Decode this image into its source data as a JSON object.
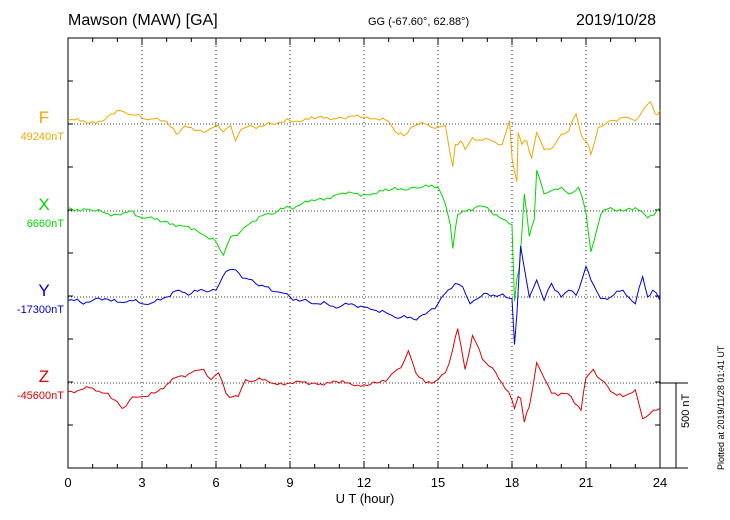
{
  "header": {
    "station": "Mawson (MAW)  [GA]",
    "coords": "GG (-67.60°,  62.88°)",
    "date": "2019/10/28"
  },
  "footer": {
    "xlabel": "U T (hour)",
    "plotted": "Plotted at 2019/11/28 01:41 UT",
    "scale": "500 nT"
  },
  "chart_data": {
    "type": "line",
    "xlabel": "U T (hour)",
    "xlim": [
      0,
      24
    ],
    "xticks": [
      "0",
      "3",
      "6",
      "9",
      "12",
      "15",
      "18",
      "21",
      "24"
    ],
    "scale_bar_nT": 500,
    "grid": true,
    "series": [
      {
        "name": "F",
        "baseline": "49240nT",
        "color": "#f0a800",
        "x": [
          0,
          1,
          1.5,
          2,
          2.3,
          2.6,
          3,
          3.5,
          4,
          4.4,
          4.6,
          5,
          5.5,
          5.9,
          6.1,
          6.3,
          6.6,
          6.8,
          7,
          7.5,
          8,
          8.5,
          9,
          10,
          11,
          12,
          12.5,
          13,
          13.4,
          13.6,
          13.9,
          14.2,
          14.6,
          15,
          15.3,
          15.5,
          15.6,
          15.7,
          15.9,
          16.1,
          16.4,
          16.8,
          17.2,
          17.6,
          17.9,
          18.0,
          18.1,
          18.2,
          18.25,
          18.4,
          18.6,
          18.8,
          19,
          19.3,
          19.7,
          20,
          20.3,
          20.6,
          20.8,
          21,
          21.2,
          21.5,
          21.8,
          22,
          22.5,
          23,
          23.3,
          23.6,
          23.8,
          24
        ],
        "y": [
          20,
          15,
          25,
          80,
          70,
          55,
          35,
          30,
          15,
          -60,
          -30,
          -20,
          -50,
          -20,
          -10,
          -45,
          -10,
          -100,
          -35,
          -15,
          -5,
          5,
          20,
          30,
          40,
          40,
          30,
          15,
          -60,
          -70,
          -20,
          0,
          -5,
          -20,
          -10,
          -180,
          -250,
          -120,
          -100,
          -150,
          -80,
          -95,
          -100,
          -120,
          20,
          -200,
          -280,
          -340,
          -50,
          -120,
          -100,
          -200,
          -50,
          -150,
          -130,
          -60,
          -40,
          60,
          -60,
          -100,
          -180,
          -20,
          0,
          20,
          40,
          20,
          80,
          130,
          60,
          80
        ]
      },
      {
        "name": "X",
        "baseline": "6660nT",
        "color": "#00d800",
        "x": [
          0,
          1,
          2,
          2.5,
          3,
          4,
          5,
          5.5,
          6,
          6.3,
          6.6,
          7,
          7.5,
          8,
          8.5,
          9,
          10,
          11,
          12,
          13,
          14,
          15,
          15.3,
          15.5,
          15.6,
          15.8,
          16,
          16.5,
          17,
          17.5,
          18,
          18.1,
          18.2,
          18.3,
          18.5,
          18.7,
          18.9,
          19,
          19.3,
          19.6,
          20,
          20.3,
          20.7,
          21,
          21.2,
          21.6,
          22,
          22.5,
          23,
          23.5,
          24
        ],
        "y": [
          20,
          0,
          -20,
          0,
          -40,
          -60,
          -110,
          -140,
          -180,
          -260,
          -150,
          -120,
          -60,
          -20,
          0,
          20,
          60,
          100,
          100,
          120,
          140,
          140,
          40,
          -80,
          -220,
          -20,
          0,
          20,
          20,
          -40,
          -80,
          -530,
          -400,
          -330,
          100,
          -150,
          -50,
          240,
          100,
          120,
          140,
          100,
          140,
          -10,
          -240,
          -20,
          20,
          0,
          20,
          -40,
          20
        ]
      },
      {
        "name": "Y",
        "baseline": "-17300nT",
        "color": "#0000dc",
        "x": [
          0,
          0.5,
          1,
          1.5,
          2,
          2.5,
          3,
          3.5,
          4,
          4.5,
          5,
          5.5,
          6,
          6.4,
          6.8,
          7.2,
          7.6,
          8,
          8.5,
          9,
          9.5,
          10,
          10.5,
          11,
          11.5,
          12,
          12.5,
          13,
          13.5,
          14,
          14.5,
          15,
          15.4,
          15.7,
          16,
          16.3,
          16.6,
          17,
          17.5,
          18,
          18.1,
          18.2,
          18.35,
          18.5,
          18.7,
          19,
          19.3,
          19.6,
          20,
          20.3,
          20.6,
          21,
          21.2,
          21.6,
          22,
          22.5,
          23,
          23.3,
          23.5,
          23.7,
          24
        ],
        "y": [
          -20,
          -30,
          -20,
          -10,
          -30,
          -20,
          -40,
          -30,
          0,
          40,
          20,
          40,
          40,
          150,
          160,
          110,
          80,
          60,
          30,
          0,
          -20,
          -40,
          -40,
          -60,
          -40,
          -60,
          -80,
          -100,
          -120,
          -130,
          -100,
          -40,
          40,
          80,
          60,
          -40,
          -10,
          20,
          10,
          -10,
          -280,
          -100,
          300,
          170,
          0,
          100,
          -20,
          80,
          0,
          40,
          10,
          180,
          100,
          -10,
          0,
          40,
          -40,
          120,
          0,
          40,
          -20
        ]
      },
      {
        "name": "Z",
        "baseline": "-45600nT",
        "color": "#e00000",
        "x": [
          0,
          0.5,
          1,
          1.5,
          2,
          2.2,
          2.5,
          3,
          3.5,
          4,
          4.5,
          5,
          5.5,
          5.8,
          6.1,
          6.4,
          6.7,
          6.9,
          7.2,
          7.5,
          8,
          8.5,
          9,
          10,
          11,
          12,
          12.5,
          13,
          13.5,
          13.8,
          14.1,
          14.5,
          15,
          15.3,
          15.6,
          15.8,
          16.1,
          16.4,
          16.8,
          17.2,
          17.6,
          18,
          18.1,
          18.25,
          18.35,
          18.5,
          18.7,
          19,
          19.2,
          19.6,
          20,
          20.4,
          20.8,
          21,
          21.3,
          21.6,
          22,
          22.5,
          23,
          23.3,
          23.6,
          24
        ],
        "y": [
          -50,
          -40,
          -30,
          -60,
          -110,
          -150,
          -100,
          -80,
          -60,
          -10,
          40,
          60,
          80,
          20,
          60,
          -60,
          -80,
          -80,
          20,
          10,
          20,
          -10,
          0,
          0,
          0,
          -10,
          0,
          30,
          90,
          190,
          60,
          0,
          20,
          60,
          200,
          320,
          80,
          280,
          140,
          90,
          0,
          -100,
          -150,
          -80,
          -90,
          -230,
          -140,
          120,
          60,
          -60,
          -60,
          -80,
          -160,
          30,
          80,
          20,
          -50,
          -80,
          -40,
          -210,
          -180,
          -150
        ]
      }
    ]
  }
}
